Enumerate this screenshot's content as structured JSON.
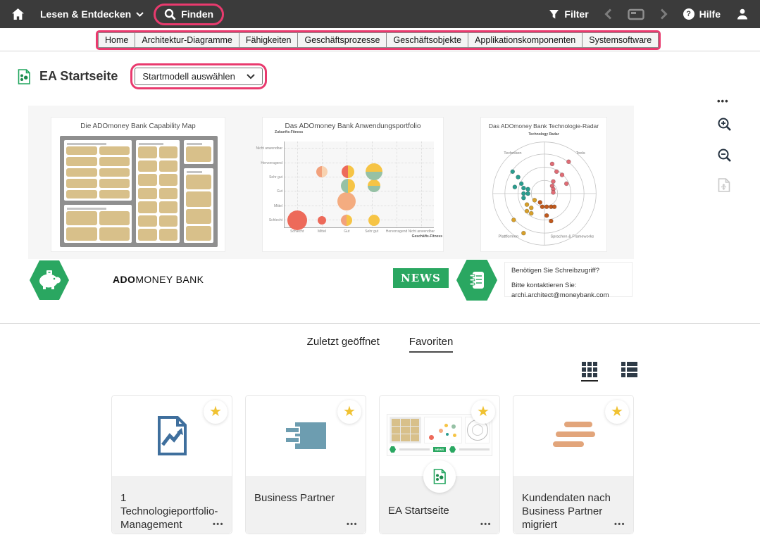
{
  "colors": {
    "topbar_bg": "#3b3b3b",
    "annotation_pink": "#e93a6e",
    "brand_green": "#2aa761",
    "star_yellow": "#f0c232",
    "capability_tan": "#d8c08a",
    "map_gray": "#8f8f8f"
  },
  "topbar": {
    "nav_label": "Lesen & Entdecken",
    "find_label": "Finden",
    "filter_label": "Filter",
    "help_label": "Hilfe"
  },
  "tabs": [
    "Home",
    "Architektur-Diagramme",
    "Fähigkeiten",
    "Geschäftsprozesse",
    "Geschäftsobjekte",
    "Applikationskomponenten",
    "Systemsoftware"
  ],
  "page": {
    "title": "EA Startseite",
    "model_select_label": "Startmodell auswählen"
  },
  "dashboard": {
    "logo_bold": "ADO",
    "logo_rest": "MONEY BANK",
    "news_label": "NEWS",
    "contact_line1": "Benötigen Sie Schreibzugriff?",
    "contact_line2": "Bitte kontaktieren Sie:",
    "contact_line3": "archi.architect@moneybank.com"
  },
  "chart_data": [
    {
      "type": "table",
      "title": "Die ADOmoney Bank Capability Map",
      "groups": [
        {
          "cols": 2,
          "boxes": 10
        },
        {
          "cols": 2,
          "boxes": 4
        },
        {
          "cols": 2,
          "boxes": 14
        },
        {
          "cols": 1,
          "boxes": 1
        },
        {
          "cols": 1,
          "boxes": 4
        }
      ]
    },
    {
      "type": "scatter",
      "title": "Das ADOmoney Bank Anwendungsportfolio",
      "xlabel": "Geschäfts-Fitness",
      "ylabel": "Zukunfts-Fitness",
      "x_ticks": [
        "Schlecht",
        "Mittel",
        "Gut",
        "Sehr gut",
        "Hervorragend",
        "Nicht anwendbar"
      ],
      "y_ticks": [
        "Schlecht",
        "Mittel",
        "Gut",
        "Sehr gut",
        "Hervorragend",
        "Nicht anwendbar"
      ],
      "points": [
        {
          "x": 8.3,
          "y": 8,
          "r": 14,
          "c": "#ed6a5a"
        },
        {
          "x": 25,
          "y": 8,
          "r": 6,
          "c": "#ed6a5a"
        },
        {
          "x": 41.7,
          "y": 8,
          "r": 8,
          "c": "#f6c445",
          "c2": "#f2a17c",
          "o": "left"
        },
        {
          "x": 60,
          "y": 8,
          "r": 8,
          "c": "#f6c445"
        },
        {
          "x": 41.7,
          "y": 30,
          "r": 13,
          "c": "#f4ac80"
        },
        {
          "x": 42.5,
          "y": 48,
          "r": 10,
          "c": "#96c1a5",
          "c2": "#f6c445",
          "o": "right"
        },
        {
          "x": 60,
          "y": 48,
          "r": 9,
          "c": "#f6c445",
          "c2": "#96c1a5",
          "o": "bottom"
        },
        {
          "x": 25,
          "y": 65,
          "r": 8,
          "c": "#f8d2b0",
          "c2": "#f2a17c",
          "o": "left"
        },
        {
          "x": 42.5,
          "y": 65,
          "r": 9,
          "c": "#f6c445",
          "c2": "#ed6a5a",
          "o": "left"
        },
        {
          "x": 60,
          "y": 65,
          "r": 12,
          "c": "#f6c445",
          "c2": "#96c1a5",
          "o": "bottom"
        }
      ]
    },
    {
      "type": "scatter",
      "title": "Das ADOmoney Bank Technologie-Radar",
      "subtitle": "Technology Radar",
      "rings": 4,
      "quadrants": [
        "Techniken",
        "Tools",
        "Plattformen",
        "Sprachen & Frameworks"
      ],
      "series": [
        {
          "color": "#2a9d8f",
          "points": [
            [
              21,
              30
            ],
            [
              26,
              35
            ],
            [
              29,
              41
            ],
            [
              23,
              44
            ],
            [
              31,
              45
            ],
            [
              35,
              46
            ],
            [
              31,
              50
            ],
            [
              35,
              50
            ],
            [
              31,
              54
            ]
          ]
        },
        {
          "color": "#e06c75",
          "points": [
            [
              57,
              23
            ],
            [
              72,
              21
            ],
            [
              61,
              30
            ],
            [
              66,
              33
            ],
            [
              58,
              39
            ],
            [
              70,
              41
            ],
            [
              57,
              43
            ],
            [
              58,
              46
            ],
            [
              58,
              49
            ]
          ]
        },
        {
          "color": "#c0591d",
          "points": [
            [
              46,
              58
            ],
            [
              48,
              62
            ],
            [
              52,
              62
            ],
            [
              56,
              62
            ],
            [
              59,
              62
            ],
            [
              52,
              70
            ],
            [
              56,
              75
            ]
          ]
        },
        {
          "color": "#d8a02a",
          "points": [
            [
              41,
              56
            ],
            [
              34,
              60
            ],
            [
              38,
              63
            ],
            [
              34,
              66
            ],
            [
              38,
              68
            ],
            [
              22,
              74
            ],
            [
              31,
              86
            ]
          ]
        }
      ]
    }
  ],
  "section": {
    "recent_label": "Zuletzt geöffnet",
    "favorites_label": "Favoriten",
    "active_tab": "Favoriten"
  },
  "cards": [
    {
      "title": "1 Technologieportfolio-Management",
      "icon": "report-diagram-icon",
      "favorite": true
    },
    {
      "title": "Business Partner",
      "icon": "component-icon",
      "favorite": true
    },
    {
      "title": "EA Startseite",
      "icon": "startpage-thumbnail",
      "favorite": true
    },
    {
      "title": "Kundendaten nach Business Partner migriert",
      "icon": "text-lines-icon",
      "favorite": true
    }
  ],
  "misc": {
    "more_dots": "•••",
    "star_glyph": "★"
  }
}
